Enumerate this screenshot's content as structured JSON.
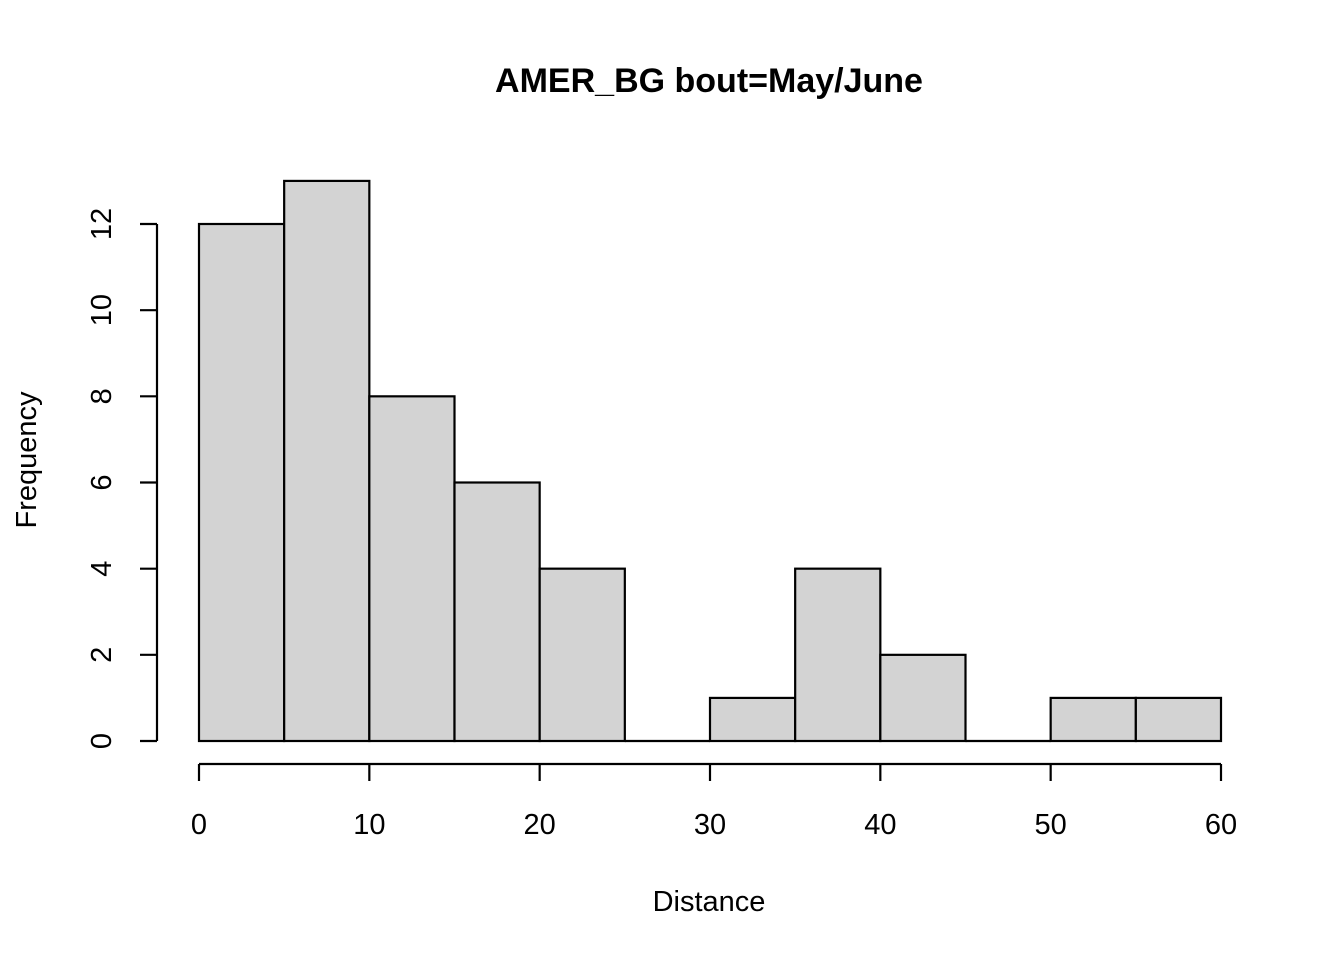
{
  "chart_data": {
    "type": "bar",
    "title": "AMER_BG  bout=May/June",
    "xlabel": "Distance",
    "ylabel": "Frequency",
    "bins": [
      {
        "start": 0,
        "end": 5,
        "count": 12
      },
      {
        "start": 5,
        "end": 10,
        "count": 13
      },
      {
        "start": 10,
        "end": 15,
        "count": 8
      },
      {
        "start": 15,
        "end": 20,
        "count": 6
      },
      {
        "start": 20,
        "end": 25,
        "count": 4
      },
      {
        "start": 25,
        "end": 30,
        "count": 0
      },
      {
        "start": 30,
        "end": 35,
        "count": 1
      },
      {
        "start": 35,
        "end": 40,
        "count": 4
      },
      {
        "start": 40,
        "end": 45,
        "count": 2
      },
      {
        "start": 45,
        "end": 50,
        "count": 0
      },
      {
        "start": 50,
        "end": 55,
        "count": 1
      },
      {
        "start": 55,
        "end": 60,
        "count": 1
      }
    ],
    "xlim": [
      0,
      60
    ],
    "ylim": [
      0,
      12
    ],
    "x_ticks": [
      0,
      10,
      20,
      30,
      40,
      50,
      60
    ],
    "y_ticks": [
      0,
      2,
      4,
      6,
      8,
      10,
      12
    ],
    "grid": false,
    "bar_color": "#d3d3d3"
  }
}
